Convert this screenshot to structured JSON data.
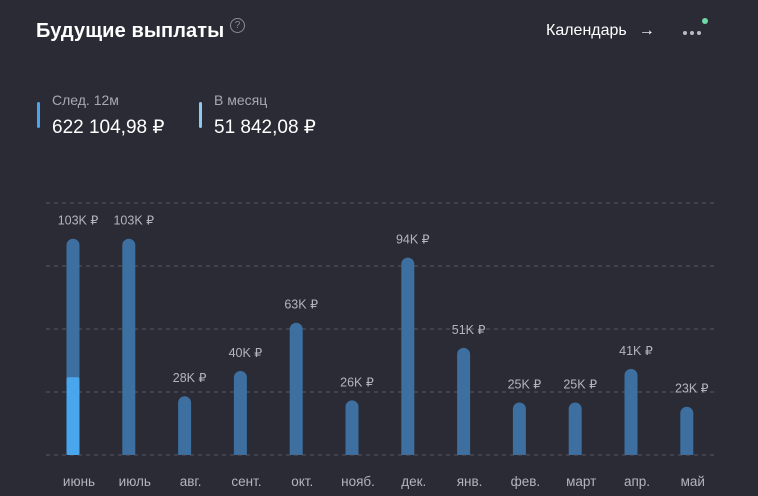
{
  "header": {
    "title": "Будущие выплаты",
    "help_symbol": "?",
    "calendar_label": "Календарь",
    "calendar_arrow": "→"
  },
  "summary": {
    "next12": {
      "label": "След. 12м",
      "value": "622 104,98 ₽"
    },
    "monthly": {
      "label": "В месяц",
      "value": "51 842,08 ₽"
    }
  },
  "colors": {
    "background": "#2b2b35",
    "bar": "#3d6fa0",
    "bar_highlight": "#4aa6ec",
    "grid": "#5a5a66",
    "notify": "#71d9a6"
  },
  "chart_data": {
    "type": "bar",
    "categories": [
      "июнь",
      "июль",
      "авг.",
      "сент.",
      "окт.",
      "нояб.",
      "дек.",
      "янв.",
      "фев.",
      "март",
      "апр.",
      "май"
    ],
    "values": [
      103,
      103,
      28,
      40,
      63,
      26,
      94,
      51,
      25,
      25,
      41,
      23
    ],
    "value_labels": [
      "103K ₽",
      "103K ₽",
      "28K ₽",
      "40K ₽",
      "63K ₽",
      "26K ₽",
      "94K ₽",
      "51K ₽",
      "25K ₽",
      "25K ₽",
      "41K ₽",
      "23K ₽"
    ],
    "highlighted_portion": [
      {
        "index": 0,
        "value": 37
      }
    ],
    "unit": "K ₽",
    "ylim": [
      0,
      120
    ],
    "grid": true,
    "grid_values": [
      30,
      60,
      90,
      120
    ],
    "title": "",
    "xlabel": "",
    "ylabel": ""
  }
}
